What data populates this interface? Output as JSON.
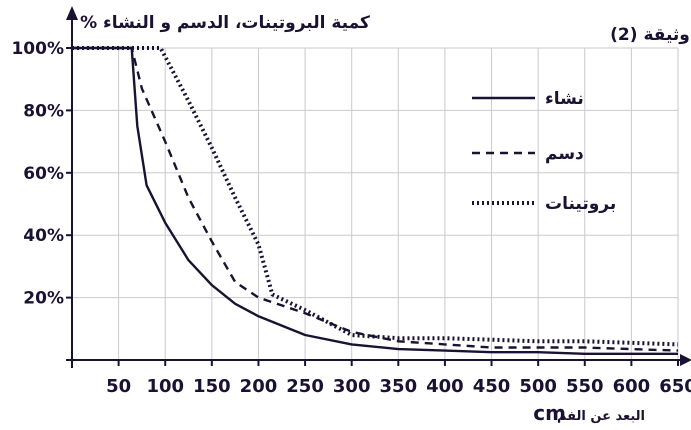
{
  "chart_data": {
    "type": "line",
    "doc_label": "وثيقة (2)",
    "ylabel": "% كمية البروتينات، الدسم و النشاء",
    "xlabel": "البعد عن الفم",
    "x_unit": "cm",
    "xlim": [
      0,
      650
    ],
    "ylim": [
      0,
      100
    ],
    "x_ticks": [
      50,
      100,
      150,
      200,
      250,
      300,
      350,
      400,
      450,
      500,
      550,
      600,
      650
    ],
    "y_ticks": [
      20,
      40,
      60,
      80,
      100
    ],
    "y_tick_labels": [
      "20%",
      "40%",
      "60%",
      "80%",
      "100%"
    ],
    "grid": true,
    "legend_position": "top-right",
    "series": [
      {
        "name": "نشاء",
        "style": "solid",
        "color": "#1a1233",
        "x": [
          0,
          64,
          70,
          80,
          100,
          125,
          150,
          175,
          200,
          250,
          300,
          350,
          400,
          450,
          500,
          550,
          600,
          650
        ],
        "y": [
          100,
          100,
          75,
          56,
          44,
          32,
          24,
          18,
          14,
          8,
          5,
          3.5,
          3,
          2.5,
          2.5,
          2,
          2,
          2
        ]
      },
      {
        "name": "دسم",
        "style": "dashed",
        "color": "#1a1233",
        "x": [
          0,
          64,
          75,
          100,
          125,
          150,
          175,
          200,
          250,
          300,
          350,
          400,
          450,
          500,
          550,
          600,
          650
        ],
        "y": [
          100,
          100,
          87,
          70,
          52,
          38,
          25,
          20,
          15,
          9,
          6,
          5,
          4,
          4,
          4,
          3.5,
          3
        ]
      },
      {
        "name": "بروتينات",
        "style": "dotted",
        "color": "#1a1233",
        "x": [
          0,
          95,
          125,
          150,
          175,
          200,
          215,
          250,
          300,
          350,
          400,
          450,
          500,
          550,
          600,
          650
        ],
        "y": [
          100,
          100,
          83,
          68,
          52,
          37,
          21,
          16,
          8,
          7,
          7,
          6.5,
          6,
          6,
          5.5,
          5
        ]
      }
    ]
  }
}
